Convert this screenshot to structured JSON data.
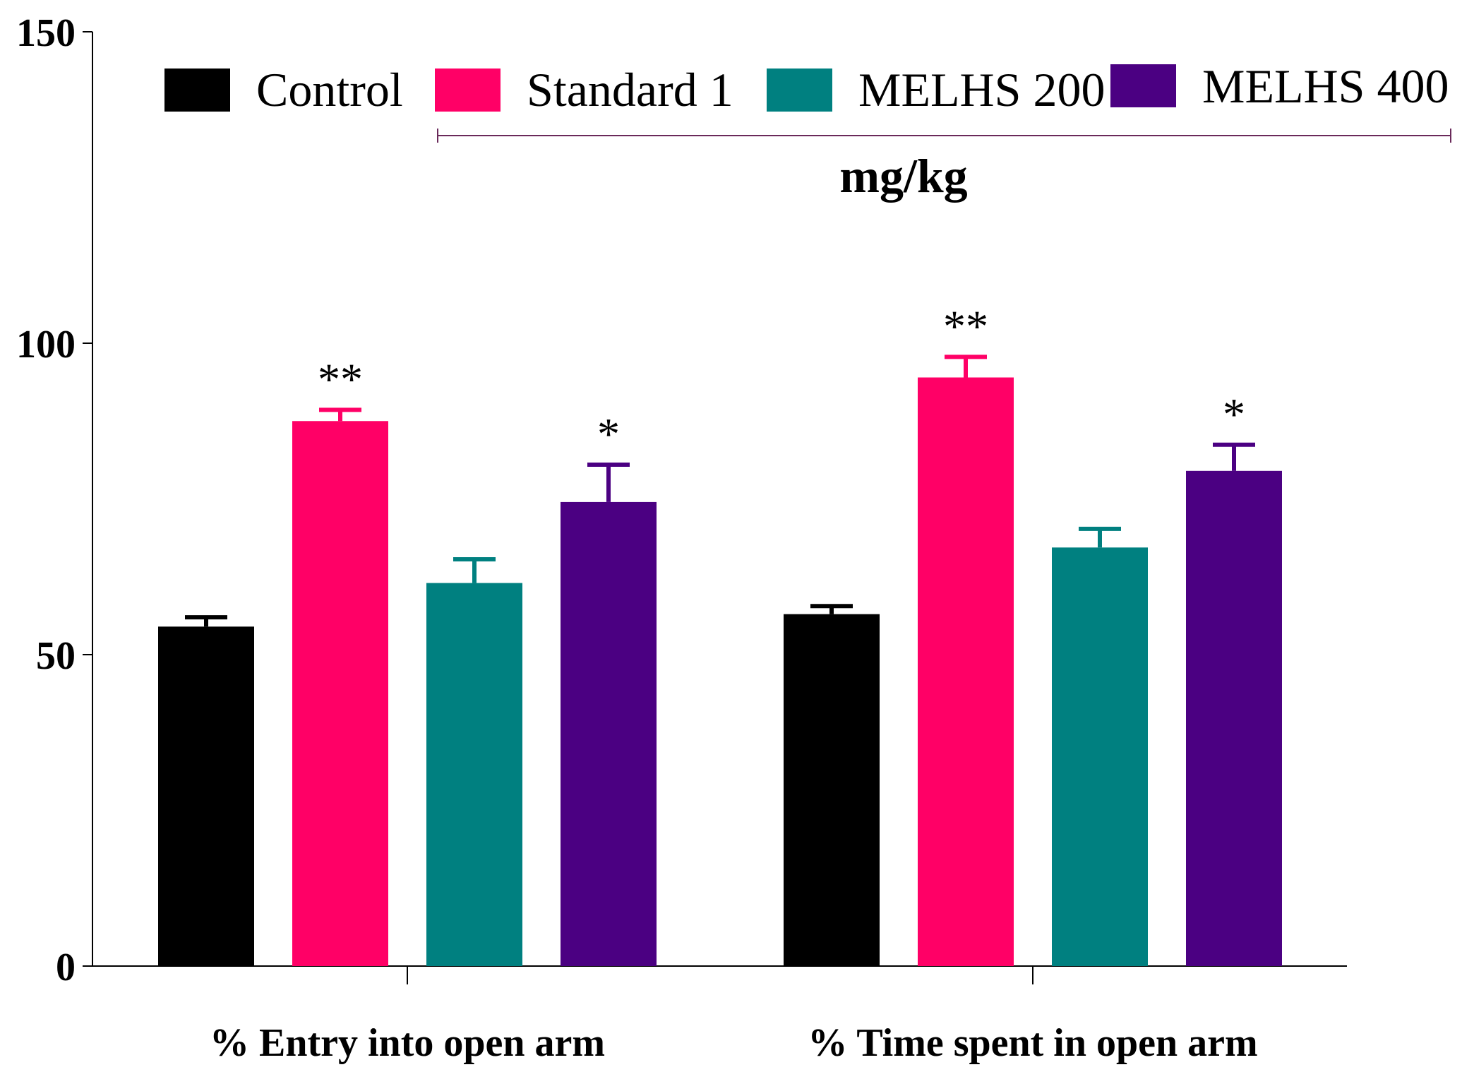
{
  "chart_data": {
    "type": "bar",
    "categories": [
      "% Entry into open arm",
      "% Time spent in open arm"
    ],
    "series": [
      {
        "name": "Control",
        "color": "#000000",
        "values": [
          54.5,
          56.5
        ],
        "errors": [
          1.5,
          1.3
        ],
        "significance": [
          "",
          ""
        ]
      },
      {
        "name": "Standard 1",
        "color": "#ff0066",
        "values": [
          87.5,
          94.5
        ],
        "errors": [
          1.8,
          3.3
        ],
        "significance": [
          "**",
          "**"
        ]
      },
      {
        "name": "MELHS 200",
        "color": "#008080",
        "values": [
          61.5,
          67.2
        ],
        "errors": [
          3.8,
          3.0
        ],
        "significance": [
          "",
          ""
        ]
      },
      {
        "name": "MELHS 400",
        "color": "#4b0082",
        "values": [
          74.5,
          79.5
        ],
        "errors": [
          6.0,
          4.2
        ],
        "significance": [
          "*",
          "*"
        ]
      }
    ],
    "ylim": [
      0,
      150
    ],
    "yticks": [
      0,
      50,
      100,
      150
    ],
    "xlabel": "",
    "ylabel": "",
    "title": "",
    "legend_position": "top",
    "legend_bracket_label": "mg/kg",
    "grid": false
  }
}
